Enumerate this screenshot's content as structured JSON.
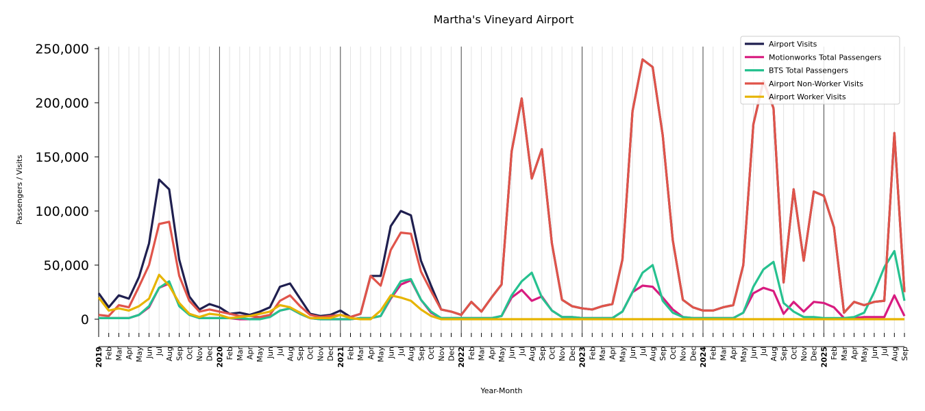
{
  "chart_data": {
    "type": "line",
    "title": "Martha's Vineyard Airport",
    "xlabel": "Year-Month",
    "ylabel": "Passengers / Visits",
    "ylim": [
      0,
      250000
    ],
    "yticks": [
      0,
      50000,
      100000,
      150000,
      200000,
      250000
    ],
    "ytick_labels": [
      "0",
      "50,000",
      "100,000",
      "150,000",
      "200,000",
      "250,000"
    ],
    "x_start": "2019-01",
    "x_end": "2025-09",
    "month_labels": [
      "Jan",
      "Feb",
      "Mar",
      "Apr",
      "May",
      "Jun",
      "Jul",
      "Aug",
      "Sep",
      "Oct",
      "Nov",
      "Dec"
    ],
    "years": [
      "2019",
      "2020",
      "2021",
      "2022",
      "2023",
      "2024",
      "2025"
    ],
    "legend_position": "top-right",
    "value_unit_multiplier": 1000,
    "series": [
      {
        "name": "Airport Visits",
        "color": "#1f1f4f",
        "values": [
          24,
          11,
          22,
          19,
          39,
          70,
          129,
          120,
          55,
          21,
          9,
          14,
          11,
          5,
          6,
          4,
          7,
          11,
          30,
          33,
          19,
          5,
          3,
          4,
          8,
          2,
          5,
          40,
          40,
          86,
          100,
          96,
          54,
          31,
          9,
          7,
          4,
          16,
          7,
          20,
          32,
          155,
          204,
          130,
          157,
          70,
          18,
          12,
          10,
          9,
          12,
          14,
          55,
          192,
          240,
          233,
          170,
          73,
          18,
          11,
          8,
          8,
          11,
          13,
          50,
          180,
          220,
          195,
          34,
          120,
          54,
          118,
          114,
          85,
          6,
          16,
          13,
          16,
          17,
          172,
          25
        ]
      },
      {
        "name": "Motionworks Total Passengers",
        "color": "#d81b7f",
        "values": [
          1,
          1,
          1,
          1,
          4,
          11,
          29,
          33,
          13,
          5,
          1,
          1,
          1,
          1,
          0,
          0,
          1,
          2,
          8,
          10,
          5,
          1,
          0,
          0,
          0,
          0,
          1,
          1,
          3,
          19,
          32,
          36,
          18,
          6,
          1,
          1,
          1,
          1,
          1,
          1,
          3,
          20,
          27,
          17,
          21,
          8,
          2,
          2,
          1,
          1,
          1,
          1,
          7,
          25,
          31,
          30,
          20,
          9,
          2,
          1,
          1,
          1,
          1,
          1,
          6,
          24,
          29,
          26,
          5,
          16,
          7,
          16,
          15,
          11,
          1,
          1,
          2,
          2,
          2,
          22,
          3
        ]
      },
      {
        "name": "BTS Total Passengers",
        "color": "#26c18f",
        "values": [
          1,
          1,
          1,
          1,
          4,
          12,
          29,
          35,
          12,
          4,
          1,
          1,
          1,
          1,
          1,
          0,
          0,
          2,
          8,
          10,
          5,
          1,
          0,
          0,
          0,
          0,
          1,
          1,
          3,
          20,
          35,
          37,
          18,
          7,
          1,
          1,
          1,
          1,
          1,
          1,
          3,
          22,
          35,
          43,
          20,
          8,
          2,
          2,
          1,
          1,
          1,
          1,
          7,
          25,
          43,
          50,
          17,
          6,
          2,
          1,
          1,
          1,
          1,
          1,
          6,
          30,
          46,
          53,
          15,
          7,
          2,
          2,
          1,
          1,
          1,
          2,
          6,
          25,
          48,
          63,
          17
        ]
      },
      {
        "name": "Airport Non-Worker Visits",
        "color": "#e0544a",
        "values": [
          4,
          3,
          13,
          11,
          30,
          50,
          88,
          90,
          40,
          17,
          7,
          9,
          7,
          5,
          3,
          3,
          2,
          4,
          17,
          22,
          12,
          4,
          2,
          3,
          4,
          2,
          5,
          40,
          31,
          64,
          80,
          79,
          44,
          26,
          9,
          7,
          4,
          16,
          7,
          20,
          32,
          155,
          204,
          130,
          157,
          70,
          18,
          12,
          10,
          9,
          12,
          14,
          55,
          192,
          240,
          233,
          170,
          73,
          18,
          11,
          8,
          8,
          11,
          13,
          50,
          180,
          220,
          195,
          34,
          120,
          54,
          118,
          114,
          85,
          6,
          16,
          13,
          16,
          17,
          172,
          25
        ]
      },
      {
        "name": "Airport Worker Visits",
        "color": "#e6b400",
        "values": [
          20,
          8,
          10,
          8,
          12,
          19,
          41,
          31,
          15,
          5,
          2,
          5,
          4,
          1,
          2,
          3,
          5,
          7,
          13,
          11,
          6,
          1,
          1,
          1,
          4,
          1,
          0,
          0,
          8,
          22,
          20,
          17,
          9,
          3,
          0,
          0,
          0,
          0,
          0,
          0,
          0,
          0,
          0,
          0,
          0,
          0,
          0,
          0,
          0,
          0,
          0,
          0,
          0,
          0,
          0,
          0,
          0,
          0,
          0,
          0,
          0,
          0,
          0,
          0,
          0,
          0,
          0,
          0,
          0,
          0,
          0,
          0,
          0,
          0,
          0,
          0,
          0,
          0,
          0,
          0,
          0
        ]
      }
    ]
  }
}
